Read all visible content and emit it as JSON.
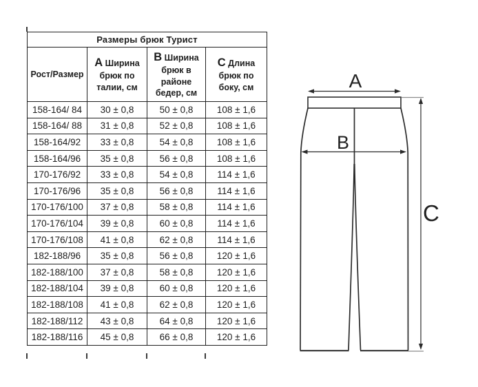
{
  "table": {
    "title": "Размеры брюк Турист",
    "columns": [
      {
        "letter": "",
        "lines": [
          "Рост/Размер"
        ]
      },
      {
        "letter": "A",
        "lines": [
          "Ширина",
          "брюк по",
          "талии, см"
        ]
      },
      {
        "letter": "B",
        "lines": [
          "Ширина",
          "брюк в",
          "районе",
          "бедер, см"
        ]
      },
      {
        "letter": "C",
        "lines": [
          "Длина",
          "брюк по",
          "боку, см"
        ]
      }
    ],
    "rows": [
      [
        "158-164/ 84",
        "30 ± 0,8",
        "50 ± 0,8",
        "108 ± 1,6"
      ],
      [
        "158-164/ 88",
        "31 ± 0,8",
        "52 ± 0,8",
        "108 ± 1,6"
      ],
      [
        "158-164/92",
        "33 ± 0,8",
        "54 ± 0,8",
        "108 ± 1,6"
      ],
      [
        "158-164/96",
        "35 ± 0,8",
        "56 ± 0,8",
        "108 ± 1,6"
      ],
      [
        "170-176/92",
        "33 ± 0,8",
        "54 ± 0,8",
        "114 ± 1,6"
      ],
      [
        "170-176/96",
        "35 ± 0,8",
        "56 ± 0,8",
        "114 ± 1,6"
      ],
      [
        "170-176/100",
        "37 ± 0,8",
        "58 ± 0,8",
        "114 ± 1,6"
      ],
      [
        "170-176/104",
        "39 ± 0,8",
        "60 ± 0,8",
        "114 ± 1,6"
      ],
      [
        "170-176/108",
        "41 ± 0,8",
        "62 ± 0,8",
        "114 ± 1,6"
      ],
      [
        "182-188/96",
        "35 ± 0,8",
        "56 ± 0,8",
        "120 ± 1,6"
      ],
      [
        "182-188/100",
        "37 ± 0,8",
        "58 ± 0,8",
        "120 ± 1,6"
      ],
      [
        "182-188/104",
        "39 ± 0,8",
        "60 ± 0,8",
        "120 ± 1,6"
      ],
      [
        "182-188/108",
        "41 ± 0,8",
        "62 ± 0,8",
        "120 ± 1,6"
      ],
      [
        "182-188/112",
        "43 ± 0,8",
        "64 ± 0,8",
        "120 ± 1,6"
      ],
      [
        "182-188/116",
        "45 ± 0,8",
        "66 ± 0,8",
        "120 ± 1,6"
      ]
    ]
  },
  "diagram": {
    "labels": {
      "a": "A",
      "b": "B",
      "c": "C"
    }
  },
  "colors": {
    "line": "#2b2b2b",
    "extension": "#8c8c8c",
    "table_border": "#1f1f1f",
    "text": "#1c1c1c"
  }
}
